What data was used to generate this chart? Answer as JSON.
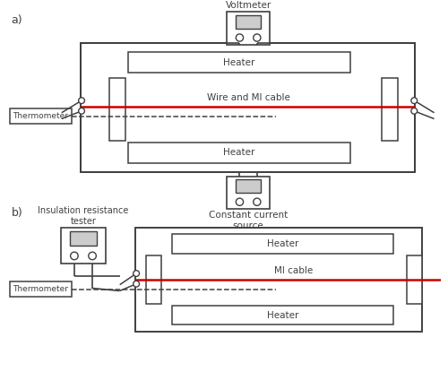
{
  "bg_color": "#ffffff",
  "line_color": "#404040",
  "red_color": "#cc0000",
  "label_a": "a)",
  "label_b": "b)",
  "voltmeter_label": "Voltmeter",
  "constant_current_label": "Constant current\nsource",
  "insulation_label": "Insulation resistance\ntester",
  "heater_label": "Heater",
  "wire_label": "Wire and MI cable",
  "mi_cable_label": "MI cable",
  "thermometer_label": "Thermometer",
  "fig_w": 5.0,
  "fig_h": 4.15,
  "dpi": 100
}
